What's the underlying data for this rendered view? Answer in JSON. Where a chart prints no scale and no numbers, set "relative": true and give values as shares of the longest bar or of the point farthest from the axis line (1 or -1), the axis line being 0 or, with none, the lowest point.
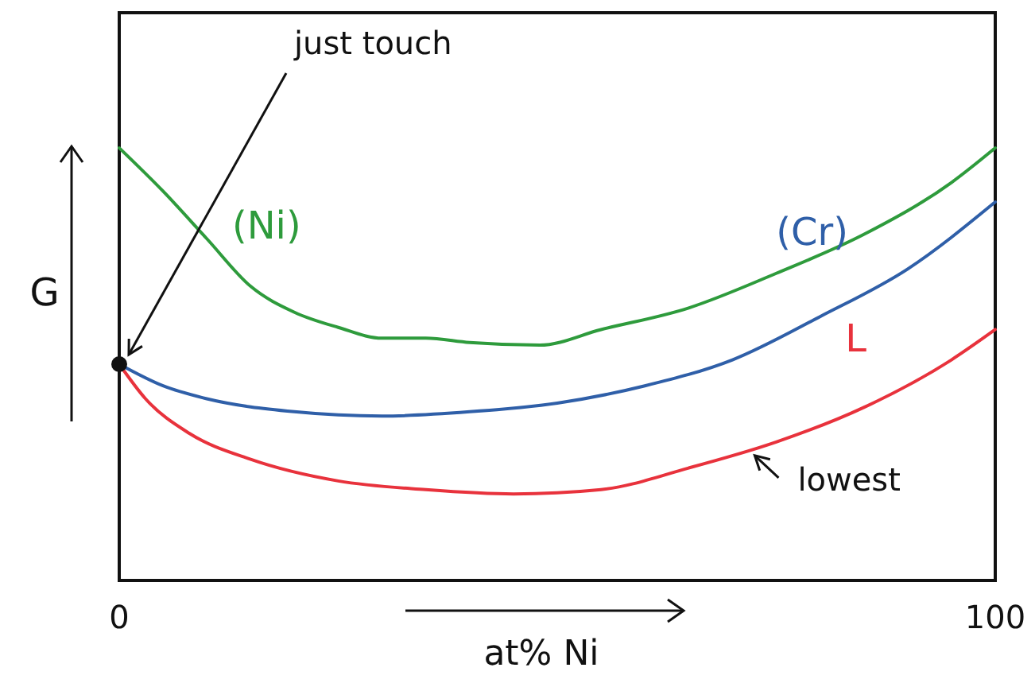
{
  "chart_data": {
    "type": "line",
    "relative": true,
    "xlabel": "at% Ni",
    "ylabel": "G",
    "xlim": [
      0,
      100
    ],
    "xticks": [
      0,
      100
    ],
    "tick_labels": "x",
    "line_style": "solid",
    "series": [
      {
        "name": "(Ni)",
        "color": "#2e9b3c",
        "x": [
          0,
          5,
          10,
          15,
          20,
          25,
          30,
          35,
          40,
          48,
          55,
          65,
          75,
          85,
          95,
          100
        ],
        "values": [
          1.0,
          0.9,
          0.79,
          0.68,
          0.62,
          0.585,
          0.56,
          0.56,
          0.55,
          0.544,
          0.58,
          0.63,
          0.71,
          0.8,
          0.92,
          1.0
        ]
      },
      {
        "name": "(Cr)",
        "color": "#2f5fa8",
        "x": [
          0,
          5,
          10,
          20,
          30,
          40,
          50,
          60,
          70,
          80,
          90,
          100
        ],
        "values": [
          0.5,
          0.45,
          0.42,
          0.39,
          0.38,
          0.39,
          0.41,
          0.45,
          0.51,
          0.61,
          0.72,
          0.875
        ]
      },
      {
        "name": "L",
        "color": "#e8323c",
        "x": [
          0,
          3,
          8,
          15,
          25,
          35,
          45,
          55,
          65,
          75,
          85,
          95,
          100
        ],
        "values": [
          0.5,
          0.42,
          0.34,
          0.28,
          0.23,
          0.21,
          0.2,
          0.21,
          0.26,
          0.32,
          0.4,
          0.51,
          0.58
        ]
      },
      {
        "type": "scatter",
        "color": "#111111",
        "x": [
          0
        ],
        "values": [
          0.5
        ]
      }
    ],
    "annotations": [
      {
        "text": "just touch",
        "x": 0,
        "y": 0.5
      },
      {
        "text": "lowest",
        "x": 72,
        "y": 0.3
      }
    ]
  }
}
